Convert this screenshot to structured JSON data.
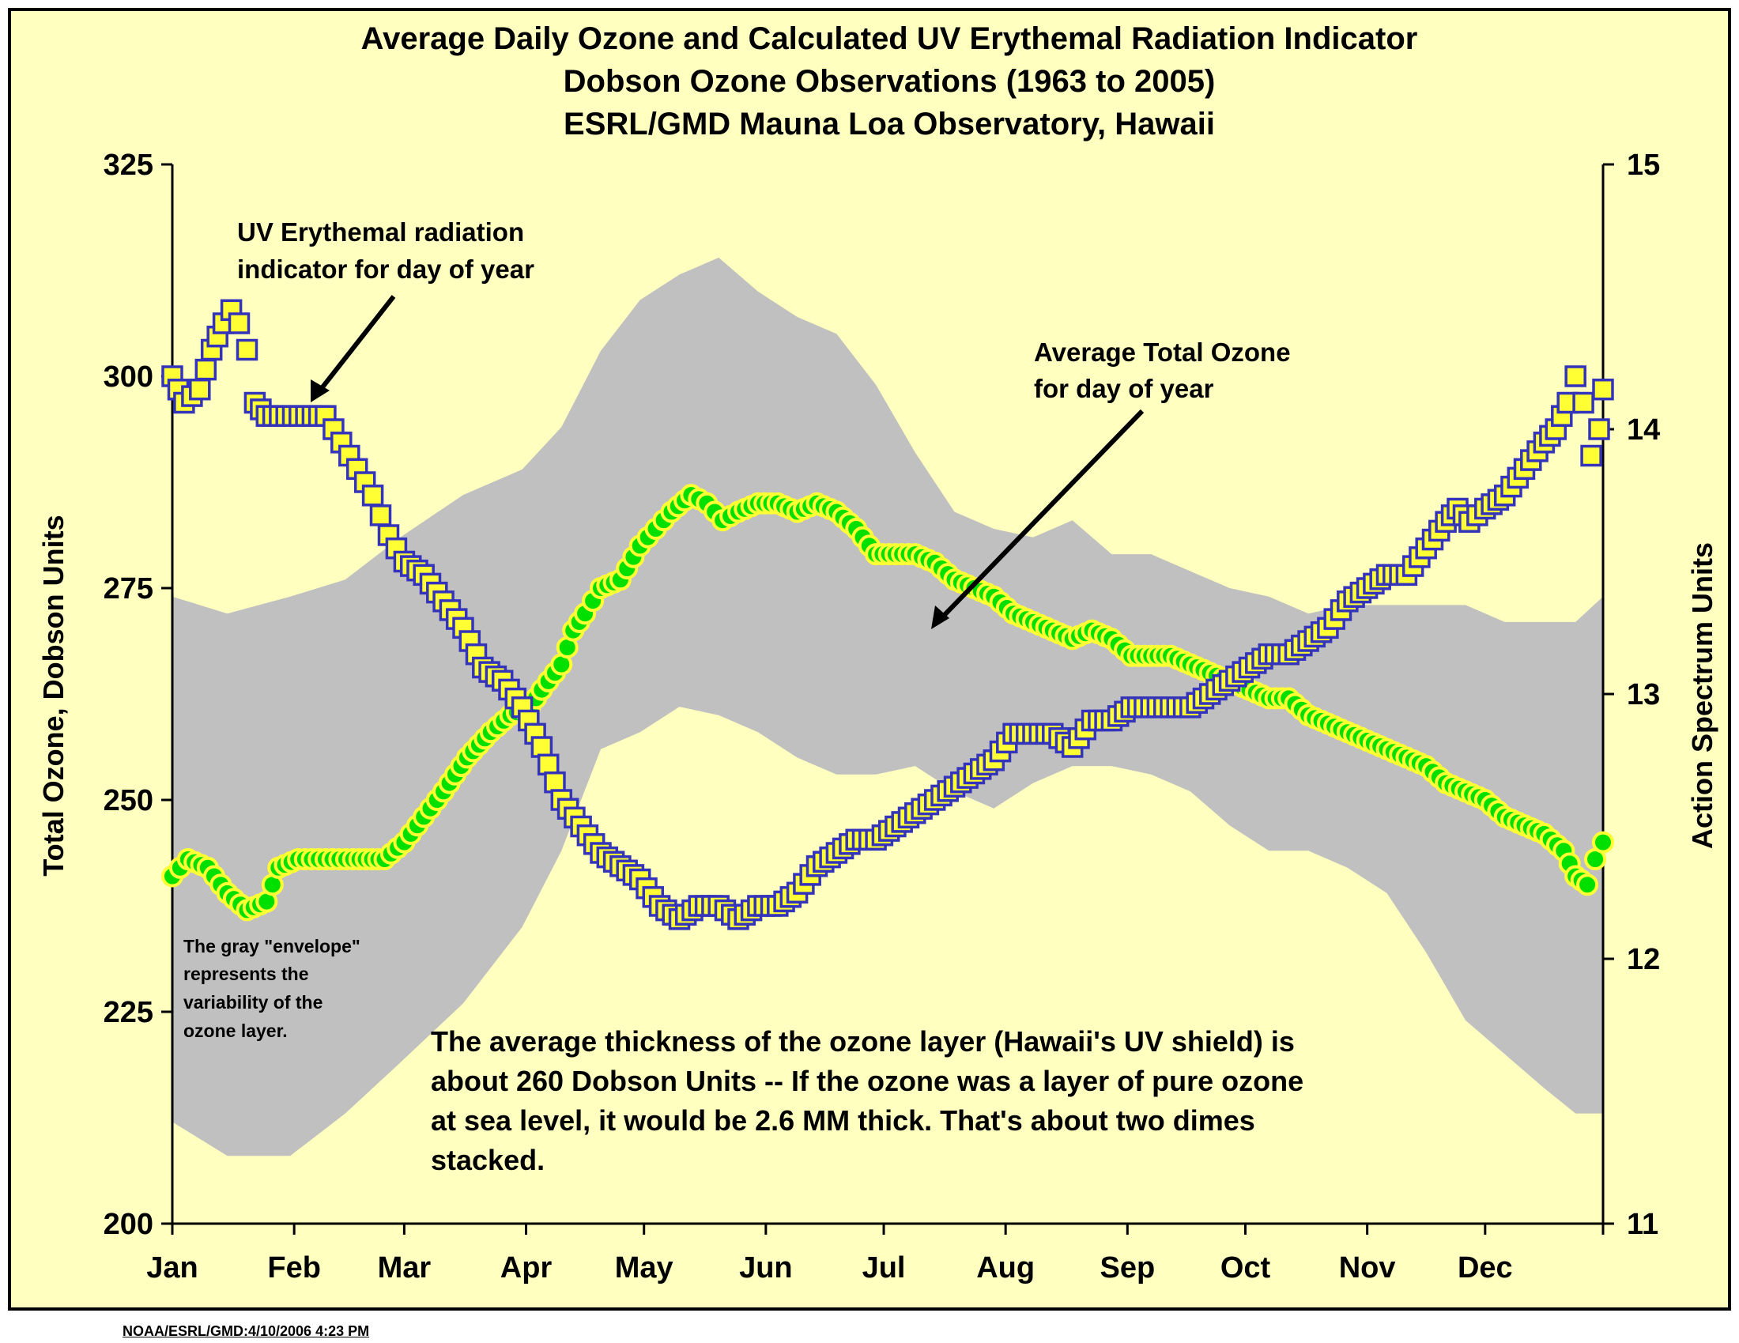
{
  "chart_data": {
    "type": "scatter",
    "title_lines": [
      "Average Daily Ozone and Calculated UV Erythemal  Radiation Indicator",
      "Dobson Ozone Observations (1963 to 2005)",
      "ESRL/GMD Mauna Loa Observatory, Hawaii"
    ],
    "ylabel_left": "Total Ozone, Dobson Units",
    "ylabel_right": "Action Spectrum Units",
    "ylim_left": [
      200,
      325
    ],
    "ylim_right": [
      11,
      15
    ],
    "yticks_left": [
      "200",
      "225",
      "250",
      "275",
      "300",
      "325"
    ],
    "yticks_right": [
      "11",
      "12",
      "13",
      "14",
      "15"
    ],
    "months": [
      "Jan",
      "Feb",
      "Mar",
      "Apr",
      "May",
      "Jun",
      "Jul",
      "Aug",
      "Sep",
      "Oct",
      "Nov",
      "Dec"
    ],
    "annotations": {
      "uv_label": [
        "UV Erythemal radiation",
        "indicator for day of year"
      ],
      "ozone_label": [
        "Average Total Ozone",
        "for day of year"
      ],
      "envelope_note": [
        "The gray \"envelope\"",
        "represents the",
        "variability of the",
        "ozone layer."
      ],
      "thickness_note": [
        "The average thickness of the ozone layer (Hawaii's UV shield) is",
        "about 260 Dobson Units -- If the ozone was a layer of pure ozone",
        "at sea level, it would be 2.6 MM thick.  That's about two dimes",
        "stacked."
      ]
    },
    "series": [
      {
        "axis": "left",
        "marker": "circle",
        "points": [
          [
            1,
            241
          ],
          [
            5,
            243
          ],
          [
            10,
            242
          ],
          [
            15,
            239
          ],
          [
            20,
            237
          ],
          [
            25,
            238
          ],
          [
            28,
            242
          ],
          [
            33,
            243
          ],
          [
            40,
            243
          ],
          [
            47,
            243
          ],
          [
            55,
            243
          ],
          [
            60,
            245
          ],
          [
            65,
            248
          ],
          [
            70,
            251
          ],
          [
            76,
            255
          ],
          [
            82,
            258
          ],
          [
            87,
            260
          ],
          [
            92,
            261
          ],
          [
            95,
            263
          ],
          [
            100,
            266
          ],
          [
            103,
            270
          ],
          [
            106,
            272
          ],
          [
            110,
            275
          ],
          [
            115,
            276
          ],
          [
            120,
            280
          ],
          [
            124,
            282
          ],
          [
            128,
            284
          ],
          [
            133,
            286
          ],
          [
            137,
            285
          ],
          [
            141,
            283
          ],
          [
            145,
            284
          ],
          [
            150,
            285
          ],
          [
            155,
            285
          ],
          [
            160,
            284
          ],
          [
            165,
            285
          ],
          [
            170,
            284
          ],
          [
            175,
            282
          ],
          [
            180,
            279
          ],
          [
            185,
            279
          ],
          [
            190,
            279
          ],
          [
            195,
            278
          ],
          [
            200,
            276
          ],
          [
            205,
            275
          ],
          [
            210,
            274
          ],
          [
            215,
            272
          ],
          [
            220,
            271
          ],
          [
            225,
            270
          ],
          [
            230,
            269
          ],
          [
            235,
            270
          ],
          [
            240,
            269
          ],
          [
            245,
            267
          ],
          [
            250,
            267
          ],
          [
            255,
            267
          ],
          [
            260,
            266
          ],
          [
            265,
            265
          ],
          [
            270,
            264
          ],
          [
            275,
            263
          ],
          [
            280,
            262
          ],
          [
            285,
            262
          ],
          [
            290,
            260
          ],
          [
            295,
            259
          ],
          [
            300,
            258
          ],
          [
            305,
            257
          ],
          [
            310,
            256
          ],
          [
            315,
            255
          ],
          [
            320,
            254
          ],
          [
            325,
            252
          ],
          [
            330,
            251
          ],
          [
            335,
            250
          ],
          [
            340,
            248
          ],
          [
            345,
            247
          ],
          [
            350,
            246
          ],
          [
            355,
            244
          ],
          [
            358,
            241
          ],
          [
            361,
            240
          ],
          [
            363,
            243
          ],
          [
            365,
            245
          ]
        ]
      },
      {
        "axis": "right",
        "marker": "square",
        "points": [
          [
            1,
            14.2
          ],
          [
            4,
            14.1
          ],
          [
            8,
            14.15
          ],
          [
            11,
            14.3
          ],
          [
            14,
            14.4
          ],
          [
            16,
            14.45
          ],
          [
            18,
            14.4
          ],
          [
            20,
            14.3
          ],
          [
            22,
            14.1
          ],
          [
            25,
            14.05
          ],
          [
            30,
            14.05
          ],
          [
            35,
            14.05
          ],
          [
            40,
            14.05
          ],
          [
            44,
            13.95
          ],
          [
            48,
            13.85
          ],
          [
            52,
            13.75
          ],
          [
            56,
            13.6
          ],
          [
            60,
            13.5
          ],
          [
            65,
            13.45
          ],
          [
            70,
            13.35
          ],
          [
            75,
            13.25
          ],
          [
            80,
            13.1
          ],
          [
            85,
            13.05
          ],
          [
            90,
            12.95
          ],
          [
            95,
            12.8
          ],
          [
            100,
            12.6
          ],
          [
            105,
            12.5
          ],
          [
            110,
            12.4
          ],
          [
            115,
            12.35
          ],
          [
            120,
            12.3
          ],
          [
            125,
            12.2
          ],
          [
            130,
            12.15
          ],
          [
            135,
            12.2
          ],
          [
            140,
            12.2
          ],
          [
            145,
            12.15
          ],
          [
            150,
            12.2
          ],
          [
            155,
            12.2
          ],
          [
            160,
            12.25
          ],
          [
            165,
            12.35
          ],
          [
            170,
            12.4
          ],
          [
            175,
            12.45
          ],
          [
            180,
            12.45
          ],
          [
            185,
            12.5
          ],
          [
            190,
            12.55
          ],
          [
            195,
            12.6
          ],
          [
            200,
            12.65
          ],
          [
            205,
            12.7
          ],
          [
            210,
            12.75
          ],
          [
            215,
            12.85
          ],
          [
            220,
            12.85
          ],
          [
            225,
            12.85
          ],
          [
            230,
            12.8
          ],
          [
            235,
            12.9
          ],
          [
            240,
            12.9
          ],
          [
            245,
            12.95
          ],
          [
            250,
            12.95
          ],
          [
            255,
            12.95
          ],
          [
            260,
            12.95
          ],
          [
            265,
            13.0
          ],
          [
            270,
            13.05
          ],
          [
            275,
            13.1
          ],
          [
            280,
            13.15
          ],
          [
            285,
            13.15
          ],
          [
            290,
            13.2
          ],
          [
            295,
            13.25
          ],
          [
            300,
            13.35
          ],
          [
            305,
            13.4
          ],
          [
            310,
            13.45
          ],
          [
            315,
            13.45
          ],
          [
            320,
            13.55
          ],
          [
            325,
            13.65
          ],
          [
            328,
            13.7
          ],
          [
            331,
            13.65
          ],
          [
            335,
            13.7
          ],
          [
            340,
            13.75
          ],
          [
            345,
            13.85
          ],
          [
            350,
            13.95
          ],
          [
            353,
            14.0
          ],
          [
            356,
            14.1
          ],
          [
            358,
            14.2
          ],
          [
            360,
            14.1
          ],
          [
            362,
            13.9
          ],
          [
            364,
            14.0
          ],
          [
            365,
            14.15
          ]
        ]
      },
      {
        "axis": "left",
        "type": "area",
        "name": "envelope",
        "x": [
          1,
          15,
          31,
          45,
          59,
          75,
          90,
          100,
          110,
          120,
          130,
          140,
          150,
          160,
          170,
          180,
          190,
          200,
          210,
          220,
          230,
          240,
          250,
          260,
          270,
          280,
          290,
          300,
          310,
          320,
          330,
          340,
          350,
          358,
          365
        ],
        "upper": [
          274,
          272,
          274,
          276,
          281,
          286,
          289,
          294,
          303,
          309,
          312,
          314,
          310,
          307,
          305,
          299,
          291,
          284,
          282,
          281,
          283,
          279,
          279,
          277,
          275,
          274,
          272,
          273,
          273,
          273,
          273,
          271,
          271,
          271,
          274
        ],
        "lower": [
          212,
          208,
          208,
          213,
          219,
          226,
          235,
          244,
          256,
          258,
          261,
          260,
          258,
          255,
          253,
          253,
          254,
          251,
          249,
          252,
          254,
          254,
          253,
          251,
          247,
          244,
          244,
          242,
          239,
          232,
          224,
          220,
          216,
          213,
          213
        ]
      }
    ],
    "grid": false,
    "legend": "none",
    "colors": {
      "background": "#ffffc0",
      "frame": "#000000",
      "envelope": "#c0c0c0",
      "circle_fill": "#00e000",
      "circle_edge": "#ffff33",
      "square_fill": "#ffff33",
      "square_edge": "#3333bb"
    }
  },
  "footer": "NOAA/ESRL/GMD:4/10/2006 4:23 PM"
}
